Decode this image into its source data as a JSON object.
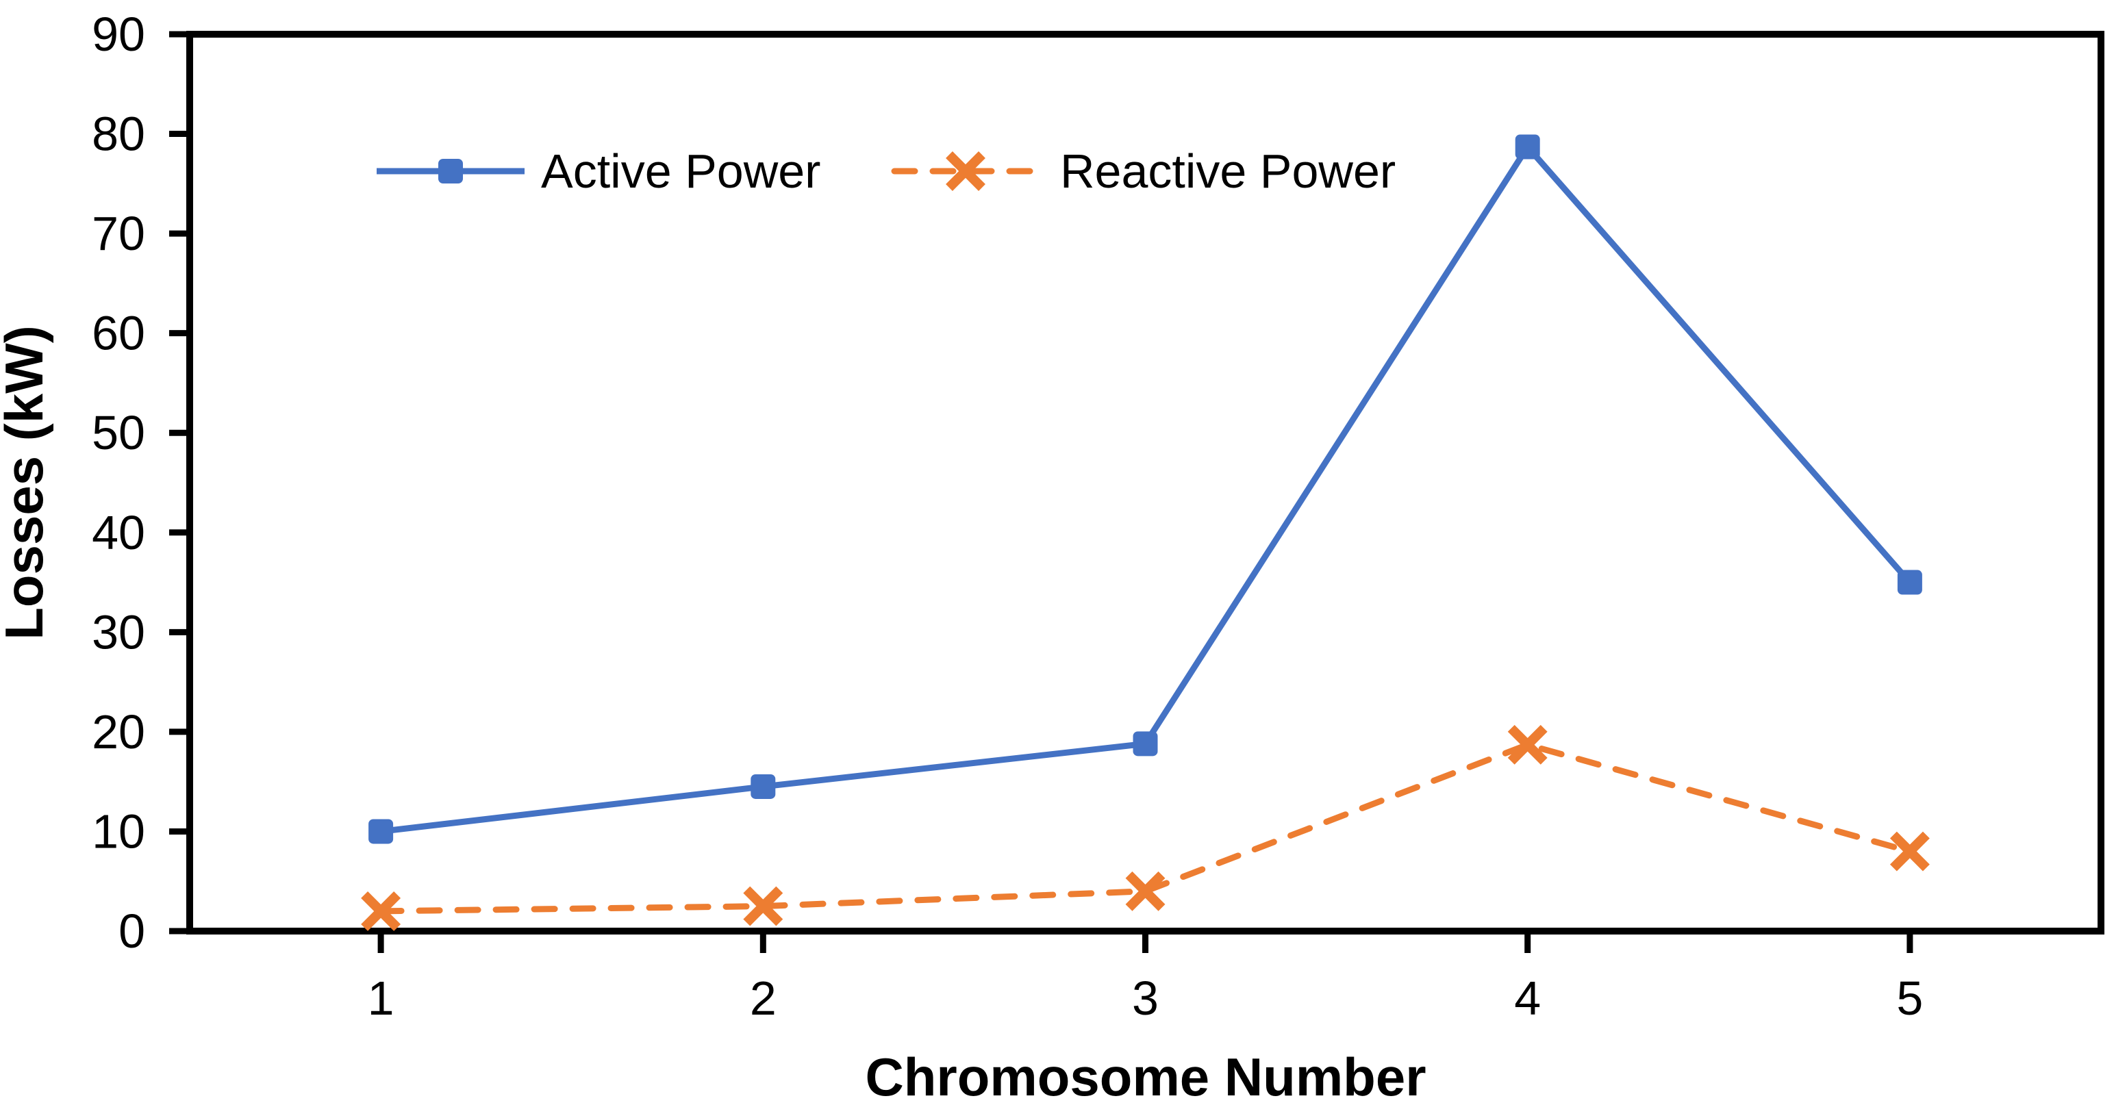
{
  "figure": {
    "background_color": "#ffffff",
    "axis_color": "#000000"
  },
  "chart_data": {
    "type": "line",
    "title": "",
    "xlabel": "Chromosome Number",
    "ylabel": "Losses (kW)",
    "categories": [
      "1",
      "2",
      "3",
      "4",
      "5"
    ],
    "x": [
      1,
      2,
      3,
      4,
      5
    ],
    "ylim": [
      0,
      90
    ],
    "ytick_step": 10,
    "ytick_labels": [
      "0",
      "10",
      "20",
      "30",
      "40",
      "50",
      "60",
      "70",
      "80",
      "90"
    ],
    "grid": false,
    "plot_border": true,
    "legend_position": "top-inside",
    "series": [
      {
        "name": "Active Power",
        "values": [
          10,
          14.5,
          18.8,
          78.7,
          35
        ],
        "color": "#4472C4",
        "line_style": "solid",
        "marker": "square"
      },
      {
        "name": "Reactive Power",
        "values": [
          2,
          2.5,
          4,
          18.7,
          8
        ],
        "color": "#ED7D31",
        "line_style": "dashed",
        "marker": "x"
      }
    ]
  }
}
